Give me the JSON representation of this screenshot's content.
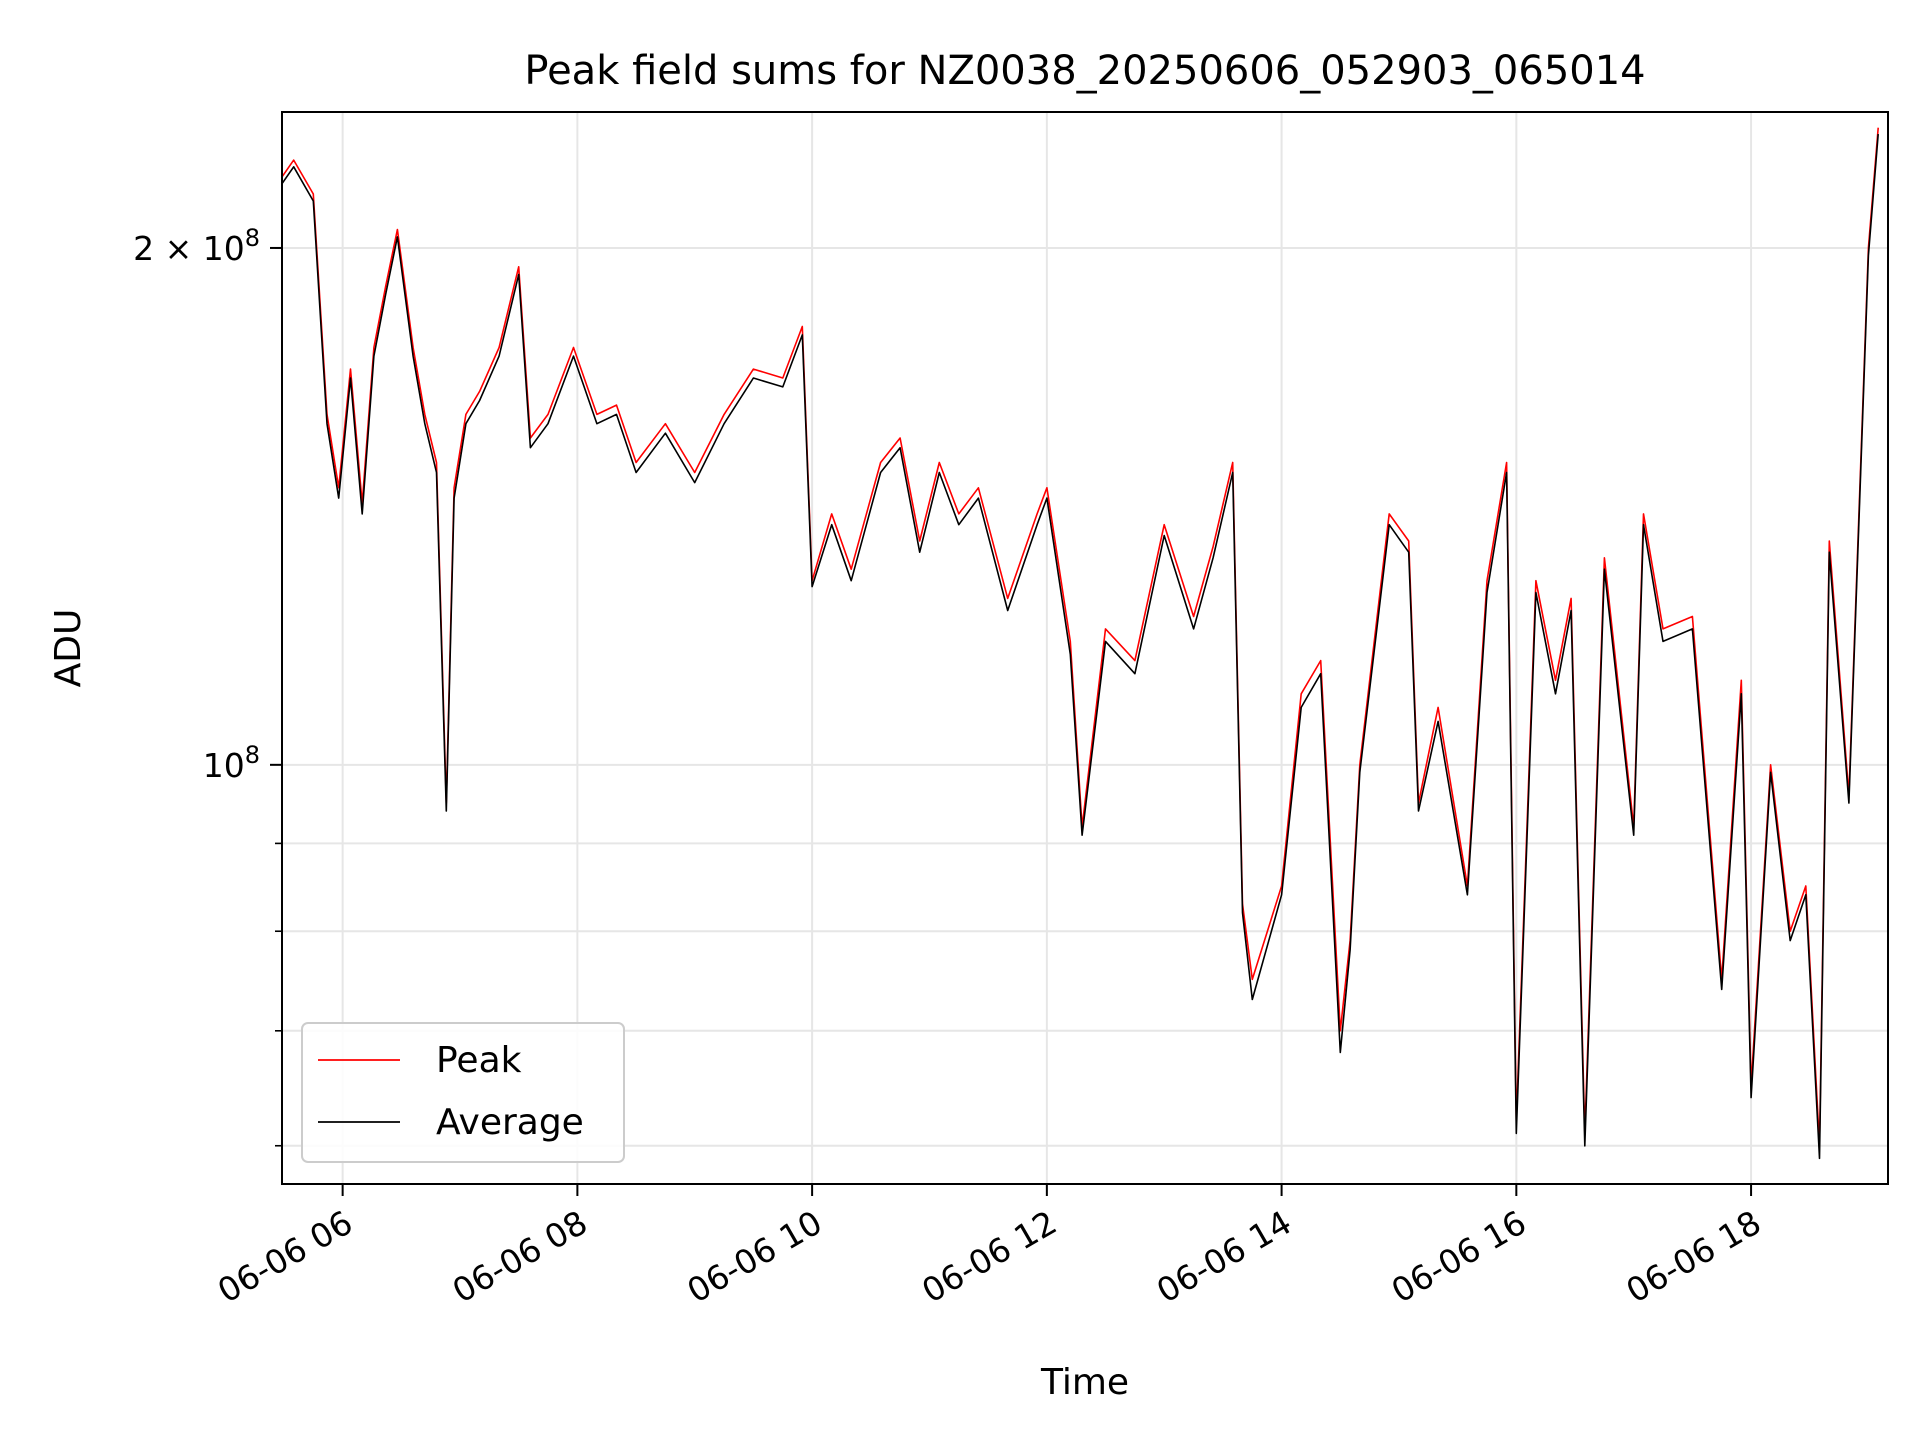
{
  "chart_data": {
    "type": "line",
    "title": "Peak field sums for NZ0038_20250606_052903_065014",
    "xlabel": "Time",
    "ylabel": "ADU",
    "x_axis_type": "time",
    "xlim": [
      "2025-06-06 05:29",
      "2025-06-06 19:10"
    ],
    "xticks": [
      {
        "value": "2025-06-06 06:00",
        "label": "06-06 06"
      },
      {
        "value": "2025-06-06 08:00",
        "label": "06-06 08"
      },
      {
        "value": "2025-06-06 10:00",
        "label": "06-06 10"
      },
      {
        "value": "2025-06-06 12:00",
        "label": "06-06 12"
      },
      {
        "value": "2025-06-06 14:00",
        "label": "06-06 14"
      },
      {
        "value": "2025-06-06 16:00",
        "label": "06-06 16"
      },
      {
        "value": "2025-06-06 18:00",
        "label": "06-06 18"
      }
    ],
    "y_scale": "log",
    "ylim": [
      57000000,
      240000000
    ],
    "yticks_major": [
      {
        "value": 100000000,
        "label": "10",
        "exp": "8"
      },
      {
        "value": 200000000,
        "label": "2 × 10",
        "exp": "8"
      }
    ],
    "yticks_minor": [
      60000000,
      70000000,
      80000000,
      90000000,
      200000000
    ],
    "grid": true,
    "legend_location": "lower-left",
    "series": [
      {
        "name": "Peak",
        "color": "#ff0000",
        "x": [
          "2025-06-06 05:29",
          "2025-06-06 05:35",
          "2025-06-06 05:45",
          "2025-06-06 05:52",
          "2025-06-06 05:58",
          "2025-06-06 06:04",
          "2025-06-06 06:10",
          "2025-06-06 06:16",
          "2025-06-06 06:22",
          "2025-06-06 06:28",
          "2025-06-06 06:36",
          "2025-06-06 06:42",
          "2025-06-06 06:48",
          "2025-06-06 06:53",
          "2025-06-06 06:57",
          "2025-06-06 07:03",
          "2025-06-06 07:10",
          "2025-06-06 07:20",
          "2025-06-06 07:30",
          "2025-06-06 07:36",
          "2025-06-06 07:45",
          "2025-06-06 07:58",
          "2025-06-06 08:10",
          "2025-06-06 08:20",
          "2025-06-06 08:30",
          "2025-06-06 08:45",
          "2025-06-06 09:00",
          "2025-06-06 09:15",
          "2025-06-06 09:30",
          "2025-06-06 09:45",
          "2025-06-06 09:55",
          "2025-06-06 10:00",
          "2025-06-06 10:10",
          "2025-06-06 10:20",
          "2025-06-06 10:35",
          "2025-06-06 10:45",
          "2025-06-06 10:55",
          "2025-06-06 11:05",
          "2025-06-06 11:15",
          "2025-06-06 11:25",
          "2025-06-06 11:40",
          "2025-06-06 11:55",
          "2025-06-06 12:00",
          "2025-06-06 12:12",
          "2025-06-06 12:18",
          "2025-06-06 12:30",
          "2025-06-06 12:45",
          "2025-06-06 13:00",
          "2025-06-06 13:15",
          "2025-06-06 13:25",
          "2025-06-06 13:35",
          "2025-06-06 13:40",
          "2025-06-06 13:45",
          "2025-06-06 14:00",
          "2025-06-06 14:10",
          "2025-06-06 14:20",
          "2025-06-06 14:30",
          "2025-06-06 14:35",
          "2025-06-06 14:40",
          "2025-06-06 14:55",
          "2025-06-06 15:05",
          "2025-06-06 15:10",
          "2025-06-06 15:20",
          "2025-06-06 15:35",
          "2025-06-06 15:45",
          "2025-06-06 15:55",
          "2025-06-06 16:00",
          "2025-06-06 16:10",
          "2025-06-06 16:20",
          "2025-06-06 16:28",
          "2025-06-06 16:35",
          "2025-06-06 16:45",
          "2025-06-06 17:00",
          "2025-06-06 17:05",
          "2025-06-06 17:15",
          "2025-06-06 17:30",
          "2025-06-06 17:45",
          "2025-06-06 17:55",
          "2025-06-06 18:00",
          "2025-06-06 18:10",
          "2025-06-06 18:20",
          "2025-06-06 18:28",
          "2025-06-06 18:35",
          "2025-06-06 18:40",
          "2025-06-06 18:50",
          "2025-06-06 19:00",
          "2025-06-06 19:05"
        ],
        "values": [
          220000000,
          225000000,
          215000000,
          160000000,
          145000000,
          170000000,
          142000000,
          175000000,
          190000000,
          205000000,
          175000000,
          160000000,
          150000000,
          95000000,
          145000000,
          160000000,
          165000000,
          175000000,
          195000000,
          155000000,
          160000000,
          175000000,
          160000000,
          162000000,
          150000000,
          158000000,
          148000000,
          160000000,
          170000000,
          168000000,
          180000000,
          128000000,
          140000000,
          130000000,
          150000000,
          155000000,
          135000000,
          150000000,
          140000000,
          145000000,
          125000000,
          140000000,
          145000000,
          118000000,
          92000000,
          120000000,
          115000000,
          138000000,
          122000000,
          134000000,
          150000000,
          83000000,
          75000000,
          85000000,
          110000000,
          115000000,
          70000000,
          79000000,
          100000000,
          140000000,
          135000000,
          95000000,
          108000000,
          85000000,
          128000000,
          150000000,
          62000000,
          128000000,
          112000000,
          125000000,
          61000000,
          132000000,
          92000000,
          140000000,
          120000000,
          122000000,
          75000000,
          112000000,
          65000000,
          100000000,
          80000000,
          85000000,
          60000000,
          135000000,
          96000000,
          200000000,
          235000000
        ]
      },
      {
        "name": "Average",
        "color": "#000000",
        "x": [
          "2025-06-06 05:29",
          "2025-06-06 05:35",
          "2025-06-06 05:45",
          "2025-06-06 05:52",
          "2025-06-06 05:58",
          "2025-06-06 06:04",
          "2025-06-06 06:10",
          "2025-06-06 06:16",
          "2025-06-06 06:22",
          "2025-06-06 06:28",
          "2025-06-06 06:36",
          "2025-06-06 06:42",
          "2025-06-06 06:48",
          "2025-06-06 06:53",
          "2025-06-06 06:57",
          "2025-06-06 07:03",
          "2025-06-06 07:10",
          "2025-06-06 07:20",
          "2025-06-06 07:30",
          "2025-06-06 07:36",
          "2025-06-06 07:45",
          "2025-06-06 07:58",
          "2025-06-06 08:10",
          "2025-06-06 08:20",
          "2025-06-06 08:30",
          "2025-06-06 08:45",
          "2025-06-06 09:00",
          "2025-06-06 09:15",
          "2025-06-06 09:30",
          "2025-06-06 09:45",
          "2025-06-06 09:55",
          "2025-06-06 10:00",
          "2025-06-06 10:10",
          "2025-06-06 10:20",
          "2025-06-06 10:35",
          "2025-06-06 10:45",
          "2025-06-06 10:55",
          "2025-06-06 11:05",
          "2025-06-06 11:15",
          "2025-06-06 11:25",
          "2025-06-06 11:40",
          "2025-06-06 11:55",
          "2025-06-06 12:00",
          "2025-06-06 12:12",
          "2025-06-06 12:18",
          "2025-06-06 12:30",
          "2025-06-06 12:45",
          "2025-06-06 13:00",
          "2025-06-06 13:15",
          "2025-06-06 13:25",
          "2025-06-06 13:35",
          "2025-06-06 13:40",
          "2025-06-06 13:45",
          "2025-06-06 14:00",
          "2025-06-06 14:10",
          "2025-06-06 14:20",
          "2025-06-06 14:30",
          "2025-06-06 14:35",
          "2025-06-06 14:40",
          "2025-06-06 14:55",
          "2025-06-06 15:05",
          "2025-06-06 15:10",
          "2025-06-06 15:20",
          "2025-06-06 15:35",
          "2025-06-06 15:45",
          "2025-06-06 15:55",
          "2025-06-06 16:00",
          "2025-06-06 16:10",
          "2025-06-06 16:20",
          "2025-06-06 16:28",
          "2025-06-06 16:35",
          "2025-06-06 16:45",
          "2025-06-06 17:00",
          "2025-06-06 17:05",
          "2025-06-06 17:15",
          "2025-06-06 17:30",
          "2025-06-06 17:45",
          "2025-06-06 17:55",
          "2025-06-06 18:00",
          "2025-06-06 18:10",
          "2025-06-06 18:20",
          "2025-06-06 18:28",
          "2025-06-06 18:35",
          "2025-06-06 18:40",
          "2025-06-06 18:50",
          "2025-06-06 19:00",
          "2025-06-06 19:05"
        ],
        "values": [
          218000000,
          223000000,
          213000000,
          158000000,
          143000000,
          168000000,
          140000000,
          173000000,
          188000000,
          203000000,
          173000000,
          158000000,
          148000000,
          94000000,
          143000000,
          158000000,
          163000000,
          173000000,
          193000000,
          153000000,
          158000000,
          173000000,
          158000000,
          160000000,
          148000000,
          156000000,
          146000000,
          158000000,
          168000000,
          166000000,
          178000000,
          127000000,
          138000000,
          128000000,
          148000000,
          153000000,
          133000000,
          148000000,
          138000000,
          143000000,
          123000000,
          138000000,
          143000000,
          116000000,
          91000000,
          118000000,
          113000000,
          136000000,
          120000000,
          132000000,
          148000000,
          82000000,
          73000000,
          84000000,
          108000000,
          113000000,
          68000000,
          78000000,
          99000000,
          138000000,
          133000000,
          94000000,
          106000000,
          84000000,
          126000000,
          148000000,
          61000000,
          126000000,
          110000000,
          123000000,
          60000000,
          130000000,
          91000000,
          138000000,
          118000000,
          120000000,
          74000000,
          110000000,
          64000000,
          99000000,
          79000000,
          84000000,
          59000000,
          133000000,
          95000000,
          198000000,
          233000000
        ]
      }
    ]
  }
}
